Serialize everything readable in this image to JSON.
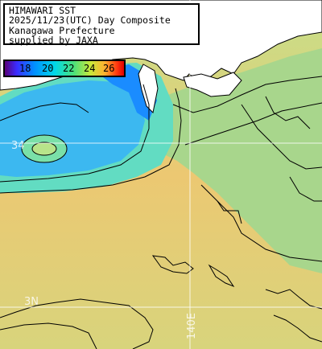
{
  "title_lines": [
    "HIMAWARI SST",
    "2025/11/23(UTC) Day Composite",
    "Kanagawa Prefecture",
    "supplied by JAXA"
  ],
  "legend": {
    "ticks": [
      "18",
      "20",
      "22",
      "24",
      "26"
    ]
  },
  "grid_labels": {
    "lat_upper": "34",
    "lat_lower": "3N",
    "lon": "140E"
  },
  "colors": {
    "land": "#ffffff",
    "coast": "#000000",
    "cold": "#1aa0ff",
    "cool": "#5fe0c8",
    "mid": "#9ed890",
    "warm": "#f0c870"
  }
}
